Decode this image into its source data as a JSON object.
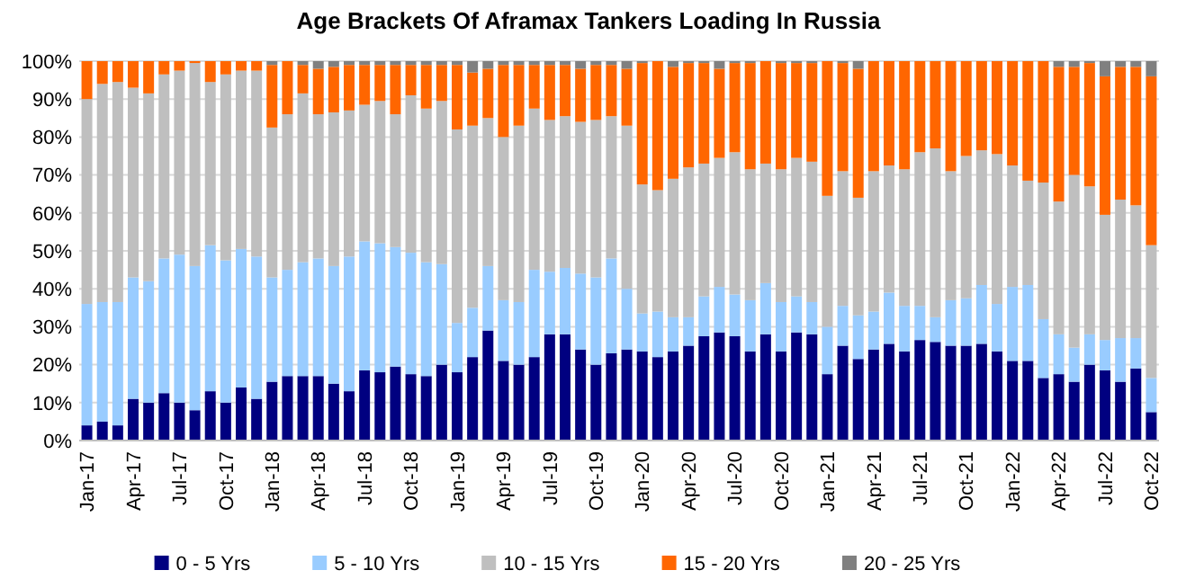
{
  "chart_data": {
    "type": "bar",
    "title": "Age Brackets Of Aframax Tankers Loading In Russia",
    "stacked": true,
    "grid": "y",
    "legend": "bottom",
    "categories": [
      "Jan-17",
      null,
      null,
      "Apr-17",
      null,
      null,
      "Jul-17",
      null,
      null,
      "Oct-17",
      null,
      null,
      "Jan-18",
      null,
      null,
      "Apr-18",
      null,
      null,
      "Jul-18",
      null,
      null,
      "Oct-18",
      null,
      null,
      "Jan-19",
      null,
      null,
      "Apr-19",
      null,
      null,
      "Jul-19",
      null,
      null,
      "Oct-19",
      null,
      null,
      "Jan-20",
      null,
      null,
      "Apr-20",
      null,
      null,
      "Jul-20",
      null,
      null,
      "Oct-20",
      null,
      null,
      "Jan-21",
      null,
      null,
      "Apr-21",
      null,
      null,
      "Jul-21",
      null,
      null,
      "Oct-21",
      null,
      null,
      "Jan-22",
      null,
      null,
      "Apr-22",
      null,
      null,
      "Jul-22",
      null,
      null,
      "Oct-22"
    ],
    "ylim": [
      0,
      100
    ],
    "yticks": [
      {
        "value": 0,
        "label": "0%"
      },
      {
        "value": 10,
        "label": "10%"
      },
      {
        "value": 20,
        "label": "20%"
      },
      {
        "value": 30,
        "label": "30%"
      },
      {
        "value": 40,
        "label": "40%"
      },
      {
        "value": 50,
        "label": "50%"
      },
      {
        "value": 60,
        "label": "60%"
      },
      {
        "value": 70,
        "label": "70%"
      },
      {
        "value": 80,
        "label": "80%"
      },
      {
        "value": 90,
        "label": "90%"
      },
      {
        "value": 100,
        "label": "100%"
      }
    ],
    "series": [
      {
        "name": "0 - 5 Yrs",
        "color": "#000080",
        "values": [
          4,
          5,
          4,
          11,
          10,
          12.5,
          10,
          8,
          13,
          10,
          14,
          11,
          15.5,
          17,
          17,
          17,
          15,
          13,
          18.5,
          18,
          19.5,
          17.5,
          17,
          20,
          18,
          22,
          29,
          21,
          20,
          22,
          28,
          28,
          24,
          20,
          23,
          24,
          23.5,
          22,
          23.5,
          25,
          27.5,
          28.5,
          27.5,
          23.5,
          28,
          23.5,
          28.5,
          28,
          17.5,
          25,
          21.5,
          24,
          25.5,
          23.5,
          26.5,
          26,
          25,
          25,
          25.5,
          23.5,
          21,
          21,
          16.5,
          17.5,
          15.5,
          20,
          18.5,
          15.5,
          19,
          7.5
        ]
      },
      {
        "name": "5 - 10 Yrs",
        "color": "#99ccff",
        "values": [
          32,
          31.5,
          32.5,
          32,
          32,
          35.5,
          39,
          38,
          38.5,
          37.5,
          36.5,
          37.5,
          27.5,
          28,
          30,
          31,
          31,
          35.5,
          34,
          34,
          31.5,
          32,
          30,
          26.5,
          13,
          13,
          17,
          16,
          16.5,
          23,
          16.5,
          17.5,
          20,
          23,
          25,
          16,
          10,
          12,
          9,
          7.5,
          10.5,
          12,
          11,
          13.5,
          13.5,
          13,
          9.5,
          8.5,
          12.5,
          10.5,
          11.5,
          10,
          13.5,
          12,
          9,
          6.5,
          12,
          12.5,
          15.5,
          12.5,
          19.5,
          20,
          15.5,
          10.5,
          9,
          8,
          8,
          11.5,
          8,
          9
        ]
      },
      {
        "name": "10 - 15 Yrs",
        "color": "#bfbfbf",
        "values": [
          54,
          57.5,
          58,
          50,
          49.5,
          48.5,
          48.5,
          53.5,
          43,
          49,
          47,
          49,
          39.5,
          41,
          44.5,
          38,
          40.5,
          38.5,
          36,
          37.5,
          35,
          41.5,
          40.5,
          43,
          51,
          48,
          39,
          43,
          46.5,
          42.5,
          40,
          40,
          40,
          41.5,
          37.5,
          43,
          34,
          32,
          36.5,
          39.5,
          35,
          34,
          37.5,
          34.5,
          31.5,
          35,
          36.5,
          37,
          34.5,
          35.5,
          31,
          37,
          33.5,
          36,
          40.5,
          44.5,
          34,
          37.5,
          35.5,
          39.5,
          32,
          27.5,
          36,
          35,
          45.5,
          39,
          33,
          36.5,
          35,
          35
        ]
      },
      {
        "name": "15 - 20 Yrs",
        "color": "#ff6600",
        "values": [
          10,
          6,
          5.5,
          7,
          8.5,
          3.5,
          2.5,
          0.5,
          5.5,
          3.5,
          2.5,
          2.5,
          16.5,
          14,
          7.5,
          12,
          12,
          12,
          10.5,
          9.5,
          13,
          8,
          11.5,
          9.5,
          17,
          14,
          13,
          19,
          16,
          11.5,
          14.5,
          13.5,
          14,
          14.5,
          13.5,
          15,
          32,
          34,
          29.5,
          27.5,
          26.5,
          23.5,
          23.5,
          28,
          27,
          28,
          25,
          26,
          35.5,
          28.5,
          34,
          29,
          27.5,
          28.5,
          24,
          23,
          29,
          25,
          23.5,
          24.5,
          27.5,
          31.5,
          32,
          35.5,
          28.5,
          32.5,
          36.5,
          35,
          36.5,
          44.5
        ]
      },
      {
        "name": "20 - 25 Yrs",
        "color": "#808080",
        "values": [
          0,
          0,
          0,
          0,
          0,
          0,
          0,
          0,
          0,
          0,
          0,
          0,
          1,
          0,
          1,
          2,
          1.5,
          1,
          1,
          1,
          1,
          1,
          1,
          1,
          1,
          3,
          2,
          1,
          1,
          1,
          1,
          1,
          2,
          1,
          1,
          2,
          0.5,
          0,
          1.5,
          0.5,
          0.5,
          2,
          0.5,
          0.5,
          0,
          0.5,
          0.5,
          0.5,
          0,
          0.5,
          2,
          0,
          0,
          0,
          0,
          0,
          0,
          0,
          0,
          0,
          0,
          0,
          0,
          1.5,
          1.5,
          0.5,
          4,
          1.5,
          1.5,
          4
        ]
      }
    ]
  }
}
